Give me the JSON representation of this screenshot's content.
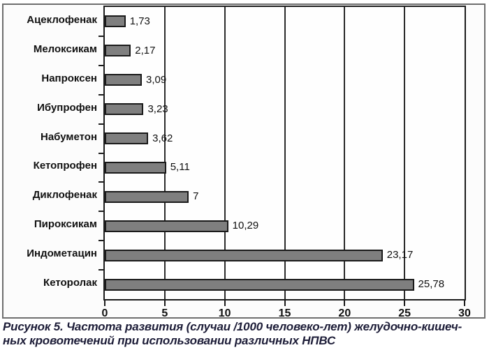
{
  "chart_data": {
    "type": "bar",
    "orientation": "horizontal",
    "categories": [
      "Ацеклофенак",
      "Мелоксикам",
      "Напроксен",
      "Ибупрофен",
      "Набуметон",
      "Кетопрофен",
      "Диклофенак",
      "Пироксикам",
      "Индометацин",
      "Кеторолак"
    ],
    "values": [
      1.73,
      2.17,
      3.09,
      3.23,
      3.62,
      5.11,
      7,
      10.29,
      23.17,
      25.78
    ],
    "value_labels": [
      "1,73",
      "2,17",
      "3,09",
      "3,23",
      "3,62",
      "5,11",
      "7",
      "10,29",
      "23,17",
      "25,78"
    ],
    "x_ticks": [
      0,
      5,
      10,
      15,
      20,
      25,
      30
    ],
    "x_tick_labels": [
      "0",
      "5",
      "10",
      "15",
      "20",
      "25",
      "30"
    ],
    "xlim": [
      0,
      30
    ],
    "grid": true,
    "legend": "none",
    "title": "",
    "xlabel": "",
    "ylabel": "",
    "bar_color": "#7f7f7f",
    "bar_border_color": "#1a1a1a"
  },
  "caption": {
    "line1": "Рисунок 5. Частота развития (случаи /1000 человеко-лет) желудочно-кишеч-",
    "line2": "ных кровотечений при использовании различных НПВС"
  }
}
